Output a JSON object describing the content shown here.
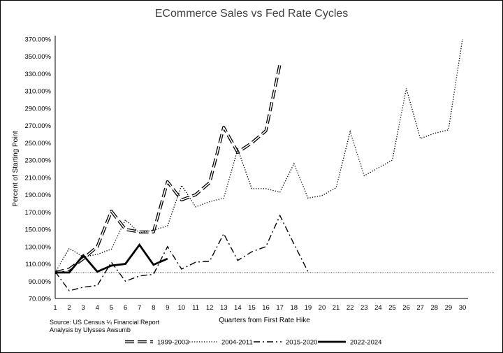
{
  "chart_data": {
    "type": "line",
    "title": "ECommerce Sales vs Fed Rate Cycles",
    "xlabel": "Quarters from First Rate Hike",
    "ylabel": "Percent of Starting Point",
    "xlim": [
      1,
      30
    ],
    "ylim": [
      70,
      370
    ],
    "x_ticks": [
      1,
      2,
      3,
      4,
      5,
      6,
      7,
      8,
      9,
      10,
      11,
      12,
      13,
      14,
      15,
      16,
      17,
      18,
      19,
      20,
      21,
      22,
      23,
      24,
      25,
      26,
      27,
      28,
      29,
      30
    ],
    "y_ticks": [
      "370.00%",
      "350.00%",
      "330.00%",
      "310.00%",
      "290.00%",
      "270.00%",
      "250.00%",
      "230.00%",
      "210.00%",
      "190.00%",
      "170.00%",
      "150.00%",
      "130.00%",
      "110.00%",
      "90.00%",
      "70.00%"
    ],
    "y_tick_values": [
      370,
      350,
      330,
      310,
      290,
      270,
      250,
      230,
      210,
      190,
      170,
      150,
      130,
      110,
      90,
      70
    ],
    "reference_line": 100,
    "grid": false,
    "legend_position": "bottom",
    "series": [
      {
        "name": "1999-2003",
        "style": "double-dash",
        "x": [
          1,
          2,
          3,
          4,
          5,
          6,
          7,
          8,
          9,
          10,
          11,
          12,
          13,
          14,
          15,
          16,
          17
        ],
        "y": [
          100,
          104,
          116,
          130,
          171,
          150,
          147,
          147,
          205,
          184,
          190,
          204,
          268,
          239,
          250,
          264,
          341
        ]
      },
      {
        "name": "2004-2011",
        "style": "dotted",
        "x": [
          1,
          2,
          3,
          4,
          5,
          6,
          7,
          8,
          9,
          10,
          11,
          12,
          13,
          14,
          15,
          16,
          17,
          18,
          19,
          20,
          21,
          22,
          23,
          24,
          25,
          26,
          27,
          28,
          29,
          30
        ],
        "y": [
          100,
          128,
          118,
          121,
          127,
          161,
          146,
          149,
          154,
          201,
          176,
          182,
          186,
          243,
          197,
          197,
          193,
          226,
          186,
          189,
          198,
          263,
          212,
          221,
          230,
          313,
          255,
          261,
          265,
          370
        ]
      },
      {
        "name": "2015-2020",
        "style": "dash-dot",
        "x": [
          1,
          2,
          3,
          4,
          5,
          6,
          7,
          8,
          9,
          10,
          11,
          12,
          13,
          14,
          15,
          16,
          17,
          18,
          19
        ],
        "y": [
          101,
          79,
          83,
          85,
          112,
          90,
          96,
          98,
          130,
          104,
          112,
          113,
          145,
          114,
          124,
          130,
          166,
          133,
          101
        ]
      },
      {
        "name": "2022-2024",
        "style": "solid-bold",
        "x": [
          1,
          2,
          3,
          4,
          5,
          6,
          7,
          8,
          9
        ],
        "y": [
          100,
          100,
          120,
          101,
          108,
          110,
          132,
          109,
          116
        ]
      }
    ]
  },
  "notes": {
    "source": "Source: US Census ¼ Financial Report",
    "analysis": "Analysis by Ulysses Awsumb"
  }
}
